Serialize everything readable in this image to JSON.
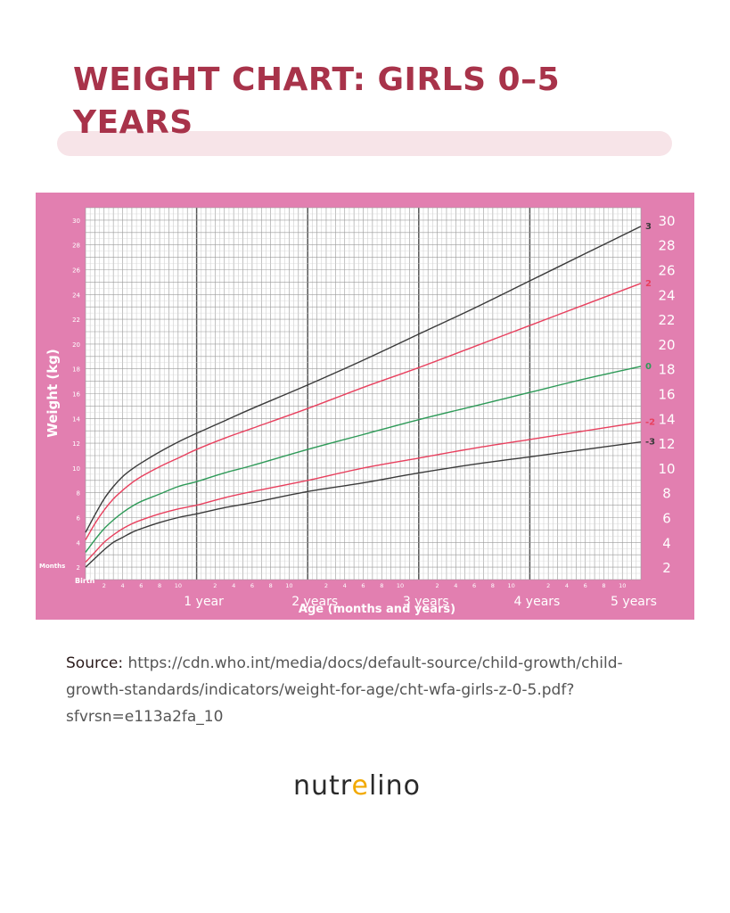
{
  "page": {
    "title": "WEIGHT CHART: GIRLS 0–5 YEARS",
    "source_label": "Source:",
    "source_url": "https://cdn.who.int/media/docs/default-source/child-growth/child-growth-standards/indicators/weight-for-age/cht-wfa-girls-z-0-5.pdf?sfvrsn=e113a2fa_10",
    "logo_before": "nutr",
    "logo_accent": "e",
    "logo_after": "lino"
  },
  "colors": {
    "frame": "#e27fb0",
    "grid_background": "#ffffff",
    "title": "#a8334a",
    "z3": "#3a3a3a",
    "z2": "#e8405e",
    "z0": "#2e9a58",
    "zm2": "#e8405e",
    "zm3": "#3a3a3a"
  },
  "chart_data": {
    "type": "line",
    "xlabel": "Age (months and years)",
    "ylabel": "Weight (kg)",
    "xlim": [
      0,
      60
    ],
    "ylim": [
      1,
      31
    ],
    "x_axis_title": "Months",
    "birth_label": "Birth",
    "month_ticks": [
      "2",
      "4",
      "6",
      "8",
      "10"
    ],
    "year_labels": [
      "1 year",
      "2 years",
      "3 years",
      "4 years",
      "5 years"
    ],
    "y_ticks": [
      2,
      4,
      6,
      8,
      10,
      12,
      14,
      16,
      18,
      20,
      22,
      24,
      26,
      28,
      30
    ],
    "grid": true,
    "series": [
      {
        "name": "3",
        "color_key": "z3",
        "x": [
          0,
          1,
          2,
          3,
          4,
          5,
          6,
          8,
          10,
          12,
          15,
          18,
          24,
          30,
          36,
          42,
          48,
          54,
          60
        ],
        "y": [
          4.8,
          6.2,
          7.5,
          8.5,
          9.3,
          9.9,
          10.4,
          11.3,
          12.1,
          12.8,
          13.8,
          14.8,
          16.7,
          18.7,
          20.8,
          22.9,
          25.1,
          27.3,
          29.5
        ]
      },
      {
        "name": "2",
        "color_key": "z2",
        "x": [
          0,
          1,
          2,
          3,
          4,
          5,
          6,
          8,
          10,
          12,
          15,
          18,
          24,
          30,
          36,
          42,
          48,
          54,
          60
        ],
        "y": [
          4.2,
          5.5,
          6.6,
          7.5,
          8.2,
          8.8,
          9.3,
          10.1,
          10.8,
          11.5,
          12.4,
          13.2,
          14.8,
          16.5,
          18.1,
          19.8,
          21.5,
          23.2,
          24.9
        ]
      },
      {
        "name": "0",
        "color_key": "z0",
        "x": [
          0,
          1,
          2,
          3,
          4,
          5,
          6,
          8,
          10,
          12,
          15,
          18,
          24,
          30,
          36,
          42,
          48,
          54,
          60
        ],
        "y": [
          3.2,
          4.2,
          5.1,
          5.8,
          6.4,
          6.9,
          7.3,
          7.9,
          8.5,
          8.9,
          9.6,
          10.2,
          11.5,
          12.7,
          13.9,
          15.0,
          16.1,
          17.2,
          18.2
        ]
      },
      {
        "name": "-2",
        "color_key": "zm2",
        "x": [
          0,
          1,
          2,
          3,
          4,
          5,
          6,
          8,
          10,
          12,
          15,
          18,
          24,
          30,
          36,
          42,
          48,
          54,
          60
        ],
        "y": [
          2.4,
          3.2,
          4.0,
          4.6,
          5.1,
          5.5,
          5.8,
          6.3,
          6.7,
          7.0,
          7.6,
          8.1,
          9.0,
          10.0,
          10.8,
          11.6,
          12.3,
          13.0,
          13.7
        ]
      },
      {
        "name": "-3",
        "color_key": "zm3",
        "x": [
          0,
          1,
          2,
          3,
          4,
          5,
          6,
          8,
          10,
          12,
          15,
          18,
          24,
          30,
          36,
          42,
          48,
          54,
          60
        ],
        "y": [
          2.0,
          2.7,
          3.4,
          4.0,
          4.4,
          4.8,
          5.1,
          5.6,
          6.0,
          6.3,
          6.8,
          7.2,
          8.1,
          8.8,
          9.6,
          10.3,
          10.9,
          11.5,
          12.1
        ]
      }
    ]
  }
}
